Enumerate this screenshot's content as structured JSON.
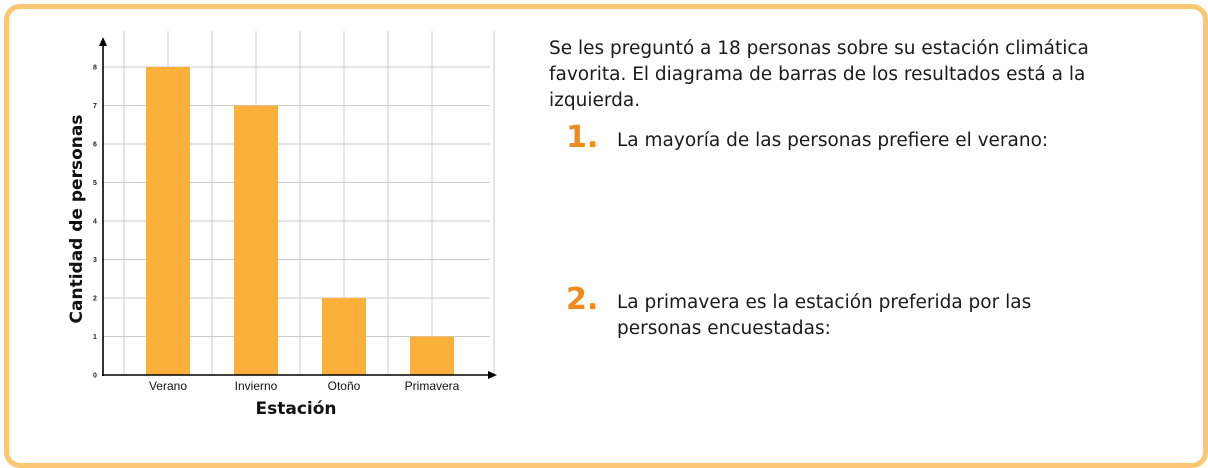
{
  "colors": {
    "border": "#fcc772",
    "bar": "#fbb03b",
    "accent": "#f18a1c",
    "grid": "#cccccc"
  },
  "chart_data": {
    "type": "bar",
    "categories": [
      "Verano",
      "Invierno",
      "Otoño",
      "Primavera"
    ],
    "values": [
      8,
      7,
      2,
      1
    ],
    "yticks": [
      0,
      1,
      2,
      3,
      4,
      5,
      6,
      7,
      8
    ],
    "ylim": [
      0,
      8
    ],
    "xlabel": "Estación",
    "ylabel": "Cantidad de personas",
    "grid": true
  },
  "text": {
    "intro": "Se les preguntó a 18 personas sobre su estación climática favorita. El diagrama de barras de los resultados está a la izquierda.",
    "questions": [
      {
        "number": "1.",
        "text": "La mayoría de las personas prefiere el verano:"
      },
      {
        "number": "2.",
        "text": "La primavera es la estación preferida por las personas encuestadas:"
      }
    ]
  }
}
